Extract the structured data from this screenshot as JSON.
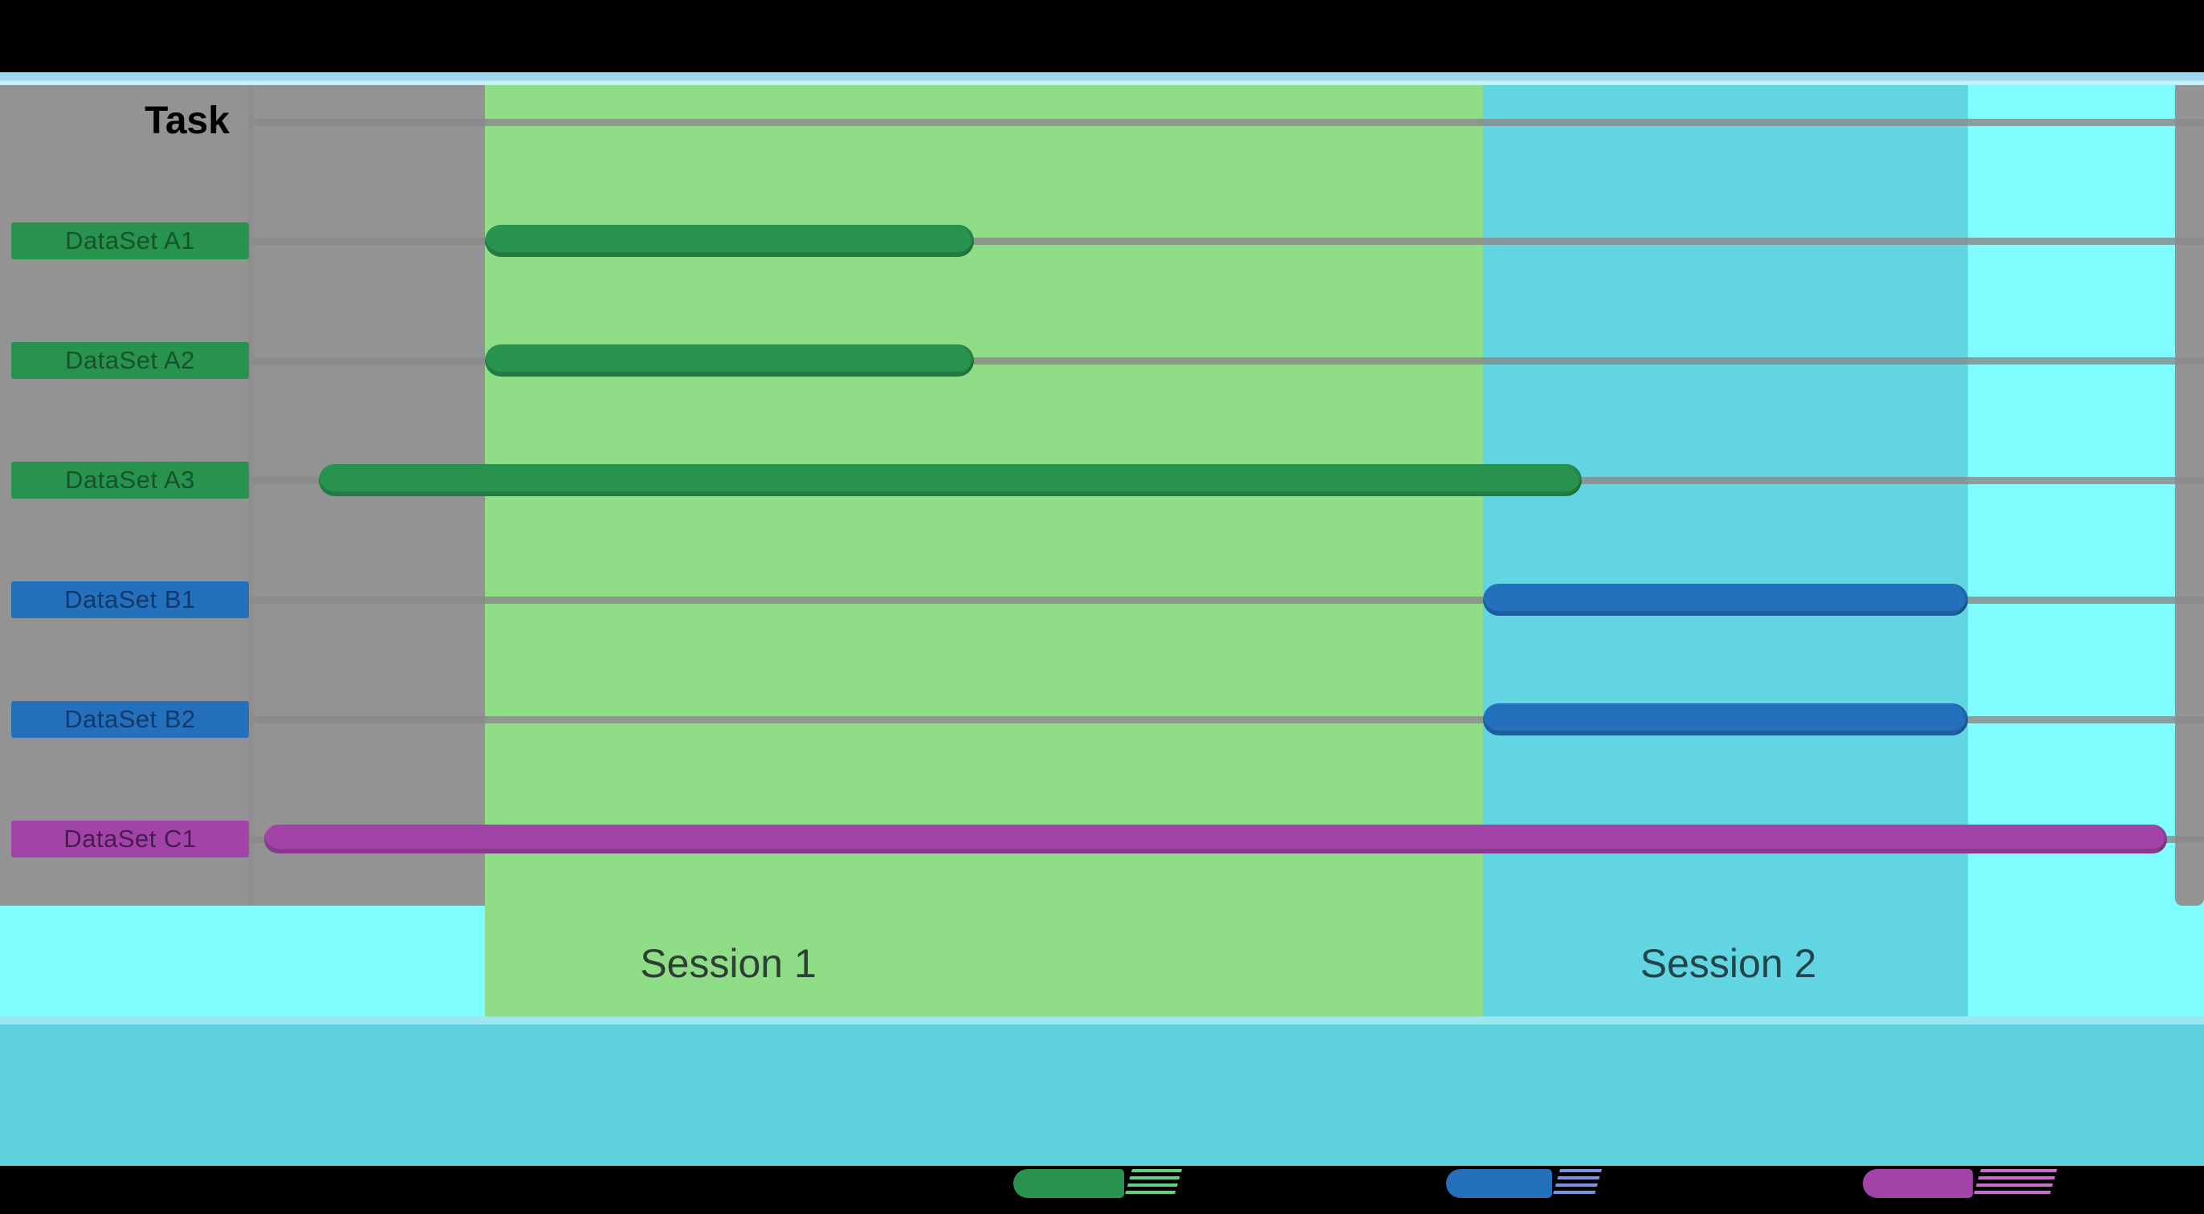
{
  "header": {
    "task_column_label": "Task"
  },
  "sessions": [
    {
      "label": "Session 1",
      "band_color": "#90DD88",
      "label_color": "#2C3E35"
    },
    {
      "label": "Session 2",
      "band_color": "#61D6E2",
      "label_color": "#24444B"
    }
  ],
  "colors": {
    "top_bar": "#000000",
    "top_strip": "#9ED7E9",
    "top_strip_highlight": "#C9F1F8",
    "label_column_gray": "#939393",
    "backdrop_cyan": "#80FDFF",
    "gridline": "#8A8A8A",
    "bottom_separator": "#9BE8F1",
    "bottom_band": "#5FD0DD",
    "series_A": "#28934F",
    "series_B": "#2570BD",
    "series_C": "#A244A7",
    "series_A_text": "#14532B",
    "series_B_text": "#10386B",
    "series_C_text": "#4A1B52"
  },
  "chart_data": {
    "type": "bar",
    "subtype": "gantt-timeline",
    "title": "",
    "xlabel": "",
    "ylabel": "Task",
    "x_axis": {
      "visible": false,
      "units": "relative position 0-1 across plot width"
    },
    "grid": true,
    "rows": [
      "DataSet A1",
      "DataSet A2",
      "DataSet A3",
      "DataSet B1",
      "DataSet B2",
      "DataSet C1"
    ],
    "bars": [
      {
        "row": "DataSet A1",
        "series": "A",
        "start": 0.118,
        "end": 0.369
      },
      {
        "row": "DataSet A2",
        "series": "A",
        "start": 0.118,
        "end": 0.369
      },
      {
        "row": "DataSet A3",
        "series": "A",
        "start": 0.033,
        "end": 0.681
      },
      {
        "row": "DataSet B1",
        "series": "B",
        "start": 0.63,
        "end": 0.879
      },
      {
        "row": "DataSet B2",
        "series": "B",
        "start": 0.63,
        "end": 0.879
      },
      {
        "row": "DataSet C1",
        "series": "C",
        "start": 0.005,
        "end": 0.981
      }
    ],
    "bands": [
      {
        "label": "Session 1",
        "start": 0.118,
        "end": 0.63,
        "color": "#90DD88",
        "label_center": 0.243
      },
      {
        "label": "Session 2",
        "start": 0.63,
        "end": 0.879,
        "color": "#61D6E2",
        "label_center": 0.756
      }
    ],
    "legend": {
      "position": "bottom",
      "entries": [
        {
          "series": "A",
          "swatch_color": "#28934F",
          "slash_color": "#66DB86",
          "label": ""
        },
        {
          "series": "B",
          "swatch_color": "#2570BD",
          "slash_color": "#7E9BEE",
          "label": ""
        },
        {
          "series": "C",
          "swatch_color": "#A244A7",
          "slash_color": "#CE76D6",
          "label": ""
        }
      ]
    }
  }
}
